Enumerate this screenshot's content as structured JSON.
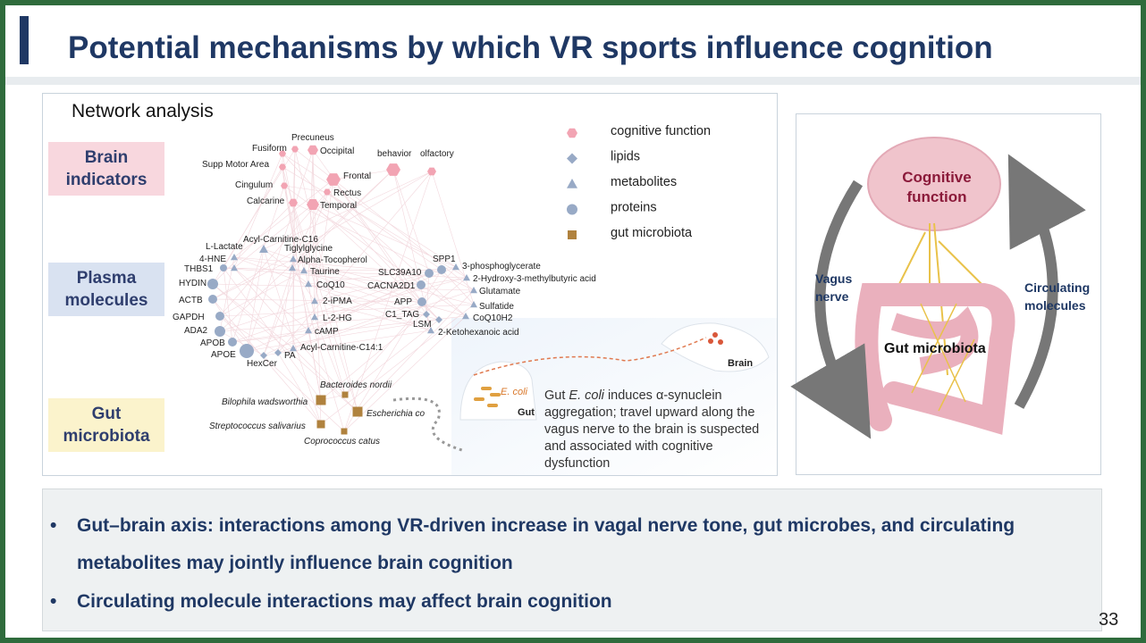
{
  "header": {
    "title": "Potential mechanisms by which VR sports influence cognition",
    "page_number": "33"
  },
  "network": {
    "title": "Network analysis",
    "groups": [
      "Brain indicators",
      "Plasma molecules",
      "Gut microbiota"
    ],
    "legend": [
      "cognitive function",
      "lipids",
      "metabolites",
      "proteins",
      "gut microbiota"
    ],
    "brain_nodes": [
      "Precuneus",
      "Fusiform",
      "Occipital",
      "behavior",
      "olfactory",
      "Supp Motor Area",
      "Frontal",
      "Cingulum",
      "Rectus",
      "Calcarine",
      "Temporal"
    ],
    "plasma_nodes": [
      "Acyl-Carnitine-C16",
      "L-Lactate",
      "Tiglylglycine",
      "4-HNE",
      "Alpha-Tocopherol",
      "THBS1",
      "Taurine",
      "HYDIN",
      "CoQ10",
      "ACTB",
      "2-iPMA",
      "GAPDH",
      "L-2-HG",
      "ADA2",
      "cAMP",
      "APOB",
      "Acyl-Carnitine-C14:1",
      "APOE",
      "PA",
      "HexCer",
      "SPP1",
      "3-phosphoglycerate",
      "SLC39A10",
      "2-Hydroxy-3-methylbutyric acid",
      "CACNA2D1",
      "Glutamate",
      "APP",
      "Sulfatide",
      "C1_TAG",
      "CoQ10H2",
      "LSM",
      "2-Ketohexanoic acid"
    ],
    "gut_nodes": [
      "Bacteroides nordii",
      "Bilophila wadsworthia",
      "Escherichia co",
      "Streptococcus salivarius",
      "Coprococcus catus"
    ],
    "inset": {
      "microbe": "E. coli",
      "gut": "Gut",
      "brain": "Brain",
      "caption": [
        "Gut",
        "E. coli",
        "induces α-synuclein aggregation; travel upward along the vagus nerve to the brain is suspected and associated with cognitive dysfunction"
      ]
    }
  },
  "gut_brain_figure": {
    "brain_label": "Cognitive function",
    "left_label": "Vagus nerve",
    "right_label": "Circulating molecules",
    "gut_label": "Gut microbiota"
  },
  "bullets": [
    "Gut–brain axis: interactions among VR-driven increase in vagal nerve tone, gut microbes, and circulating metabolites may jointly influence brain cognition",
    "Circulating molecule interactions may affect brain cognition"
  ]
}
